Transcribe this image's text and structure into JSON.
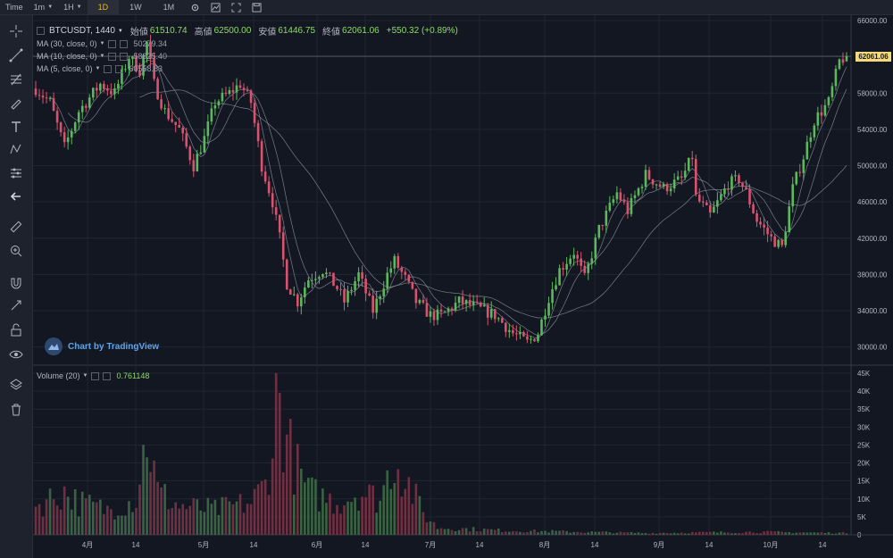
{
  "toolbar": {
    "items": [
      "Time",
      "1m",
      "1H",
      "1D",
      "1W",
      "1M"
    ],
    "active_index": 3
  },
  "sidebar_icons": [
    "crosshair-icon",
    "trend-line-icon",
    "fib-icon",
    "brush-icon",
    "text-icon",
    "pattern-icon",
    "prediction-icon",
    "back-arrow-icon",
    "ruler-icon",
    "zoom-in-icon",
    "magnet-icon",
    "lock-drawing-icon",
    "unlock-icon",
    "eye-icon",
    "layers-icon",
    "trash-icon"
  ],
  "header": {
    "symbol": "BTCUSDT, 1440",
    "open_label": "始値",
    "open": "61510.74",
    "high_label": "高値",
    "high": "62500.00",
    "low_label": "安値",
    "low": "61446.75",
    "close_label": "終値",
    "close": "62061.06",
    "change": "+550.32 (+0.89%)"
  },
  "indicators": [
    {
      "label": "MA (30, close, 0)",
      "value": "50279.34",
      "color": "#b2b5be"
    },
    {
      "label": "MA (10, close, 0)",
      "value": "58825.40",
      "color": "#b2b5be"
    },
    {
      "label": "MA (5, close, 0)",
      "value": "60558.83",
      "color": "#b2b5be"
    }
  ],
  "volume_indicator": {
    "label": "Volume (20)",
    "value": "0.761148"
  },
  "watermark": "Chart by TradingView",
  "current_price_label": "62061.06",
  "colors": {
    "up": "#5cb85c",
    "down": "#d9536f",
    "background": "#131722",
    "grid": "#1f2633",
    "ma": "#9aa0ab"
  },
  "chart_data": {
    "type": "candlestick",
    "price_axis": {
      "ticks": [
        "66000.00",
        "62000.00",
        "58000.00",
        "54000.00",
        "50000.00",
        "46000.00",
        "42000.00",
        "38000.00",
        "34000.00",
        "30000.00"
      ],
      "ylim": [
        28000,
        66000
      ]
    },
    "volume_axis": {
      "ticks": [
        "45K",
        "40K",
        "35K",
        "30K",
        "25K",
        "20K",
        "15K",
        "10K",
        "5K",
        "0"
      ],
      "ylim": [
        0,
        45000
      ]
    },
    "x_axis_labels": [
      "4月",
      "14",
      "5月",
      "14",
      "6月",
      "14",
      "7月",
      "14",
      "8月",
      "14",
      "9月",
      "14",
      "10月",
      "14"
    ],
    "close_keyframes": [
      [
        0,
        58500
      ],
      [
        4,
        57000
      ],
      [
        8,
        52000
      ],
      [
        12,
        56000
      ],
      [
        18,
        59000
      ],
      [
        22,
        58000
      ],
      [
        26,
        62000
      ],
      [
        29,
        60500
      ],
      [
        31,
        63500
      ],
      [
        33,
        59000
      ],
      [
        36,
        56000
      ],
      [
        40,
        54000
      ],
      [
        44,
        50000
      ],
      [
        47,
        53000
      ],
      [
        50,
        57000
      ],
      [
        54,
        58000
      ],
      [
        57,
        59000
      ],
      [
        60,
        57000
      ],
      [
        63,
        50000
      ],
      [
        66,
        46000
      ],
      [
        68,
        42000
      ],
      [
        70,
        37000
      ],
      [
        73,
        35000
      ],
      [
        76,
        37500
      ],
      [
        80,
        38500
      ],
      [
        84,
        36500
      ],
      [
        86,
        35000
      ],
      [
        90,
        38000
      ],
      [
        94,
        34000
      ],
      [
        98,
        38000
      ],
      [
        100,
        39500
      ],
      [
        103,
        37500
      ],
      [
        106,
        35000
      ],
      [
        110,
        33500
      ],
      [
        113,
        33500
      ],
      [
        118,
        35000
      ],
      [
        122,
        34500
      ],
      [
        128,
        33500
      ],
      [
        133,
        31500
      ],
      [
        137,
        30500
      ],
      [
        140,
        31500
      ],
      [
        143,
        35500
      ],
      [
        146,
        38500
      ],
      [
        150,
        40500
      ],
      [
        153,
        37500
      ],
      [
        157,
        43000
      ],
      [
        162,
        47000
      ],
      [
        165,
        45000
      ],
      [
        170,
        49000
      ],
      [
        175,
        47500
      ],
      [
        180,
        48500
      ],
      [
        183,
        51000
      ],
      [
        184,
        46500
      ],
      [
        188,
        44500
      ],
      [
        193,
        48000
      ],
      [
        196,
        48500
      ],
      [
        198,
        47000
      ],
      [
        201,
        44000
      ],
      [
        205,
        42000
      ],
      [
        208,
        41000
      ],
      [
        211,
        47500
      ],
      [
        214,
        51000
      ],
      [
        217,
        55000
      ],
      [
        221,
        57000
      ],
      [
        224,
        61500
      ],
      [
        226,
        62061
      ]
    ],
    "volume_keyframes": [
      [
        0,
        8000
      ],
      [
        8,
        12000
      ],
      [
        12,
        9000
      ],
      [
        20,
        7000
      ],
      [
        28,
        10000
      ],
      [
        31,
        28000
      ],
      [
        34,
        12000
      ],
      [
        40,
        8000
      ],
      [
        50,
        7000
      ],
      [
        60,
        9000
      ],
      [
        64,
        14000
      ],
      [
        66,
        26000
      ],
      [
        67,
        45000
      ],
      [
        69,
        30000
      ],
      [
        72,
        20000
      ],
      [
        76,
        12000
      ],
      [
        84,
        9000
      ],
      [
        90,
        12000
      ],
      [
        96,
        10000
      ],
      [
        100,
        22000
      ],
      [
        104,
        14000
      ],
      [
        108,
        6000
      ],
      [
        112,
        2000
      ],
      [
        130,
        1200
      ],
      [
        170,
        500
      ],
      [
        200,
        800
      ],
      [
        226,
        500
      ]
    ]
  }
}
